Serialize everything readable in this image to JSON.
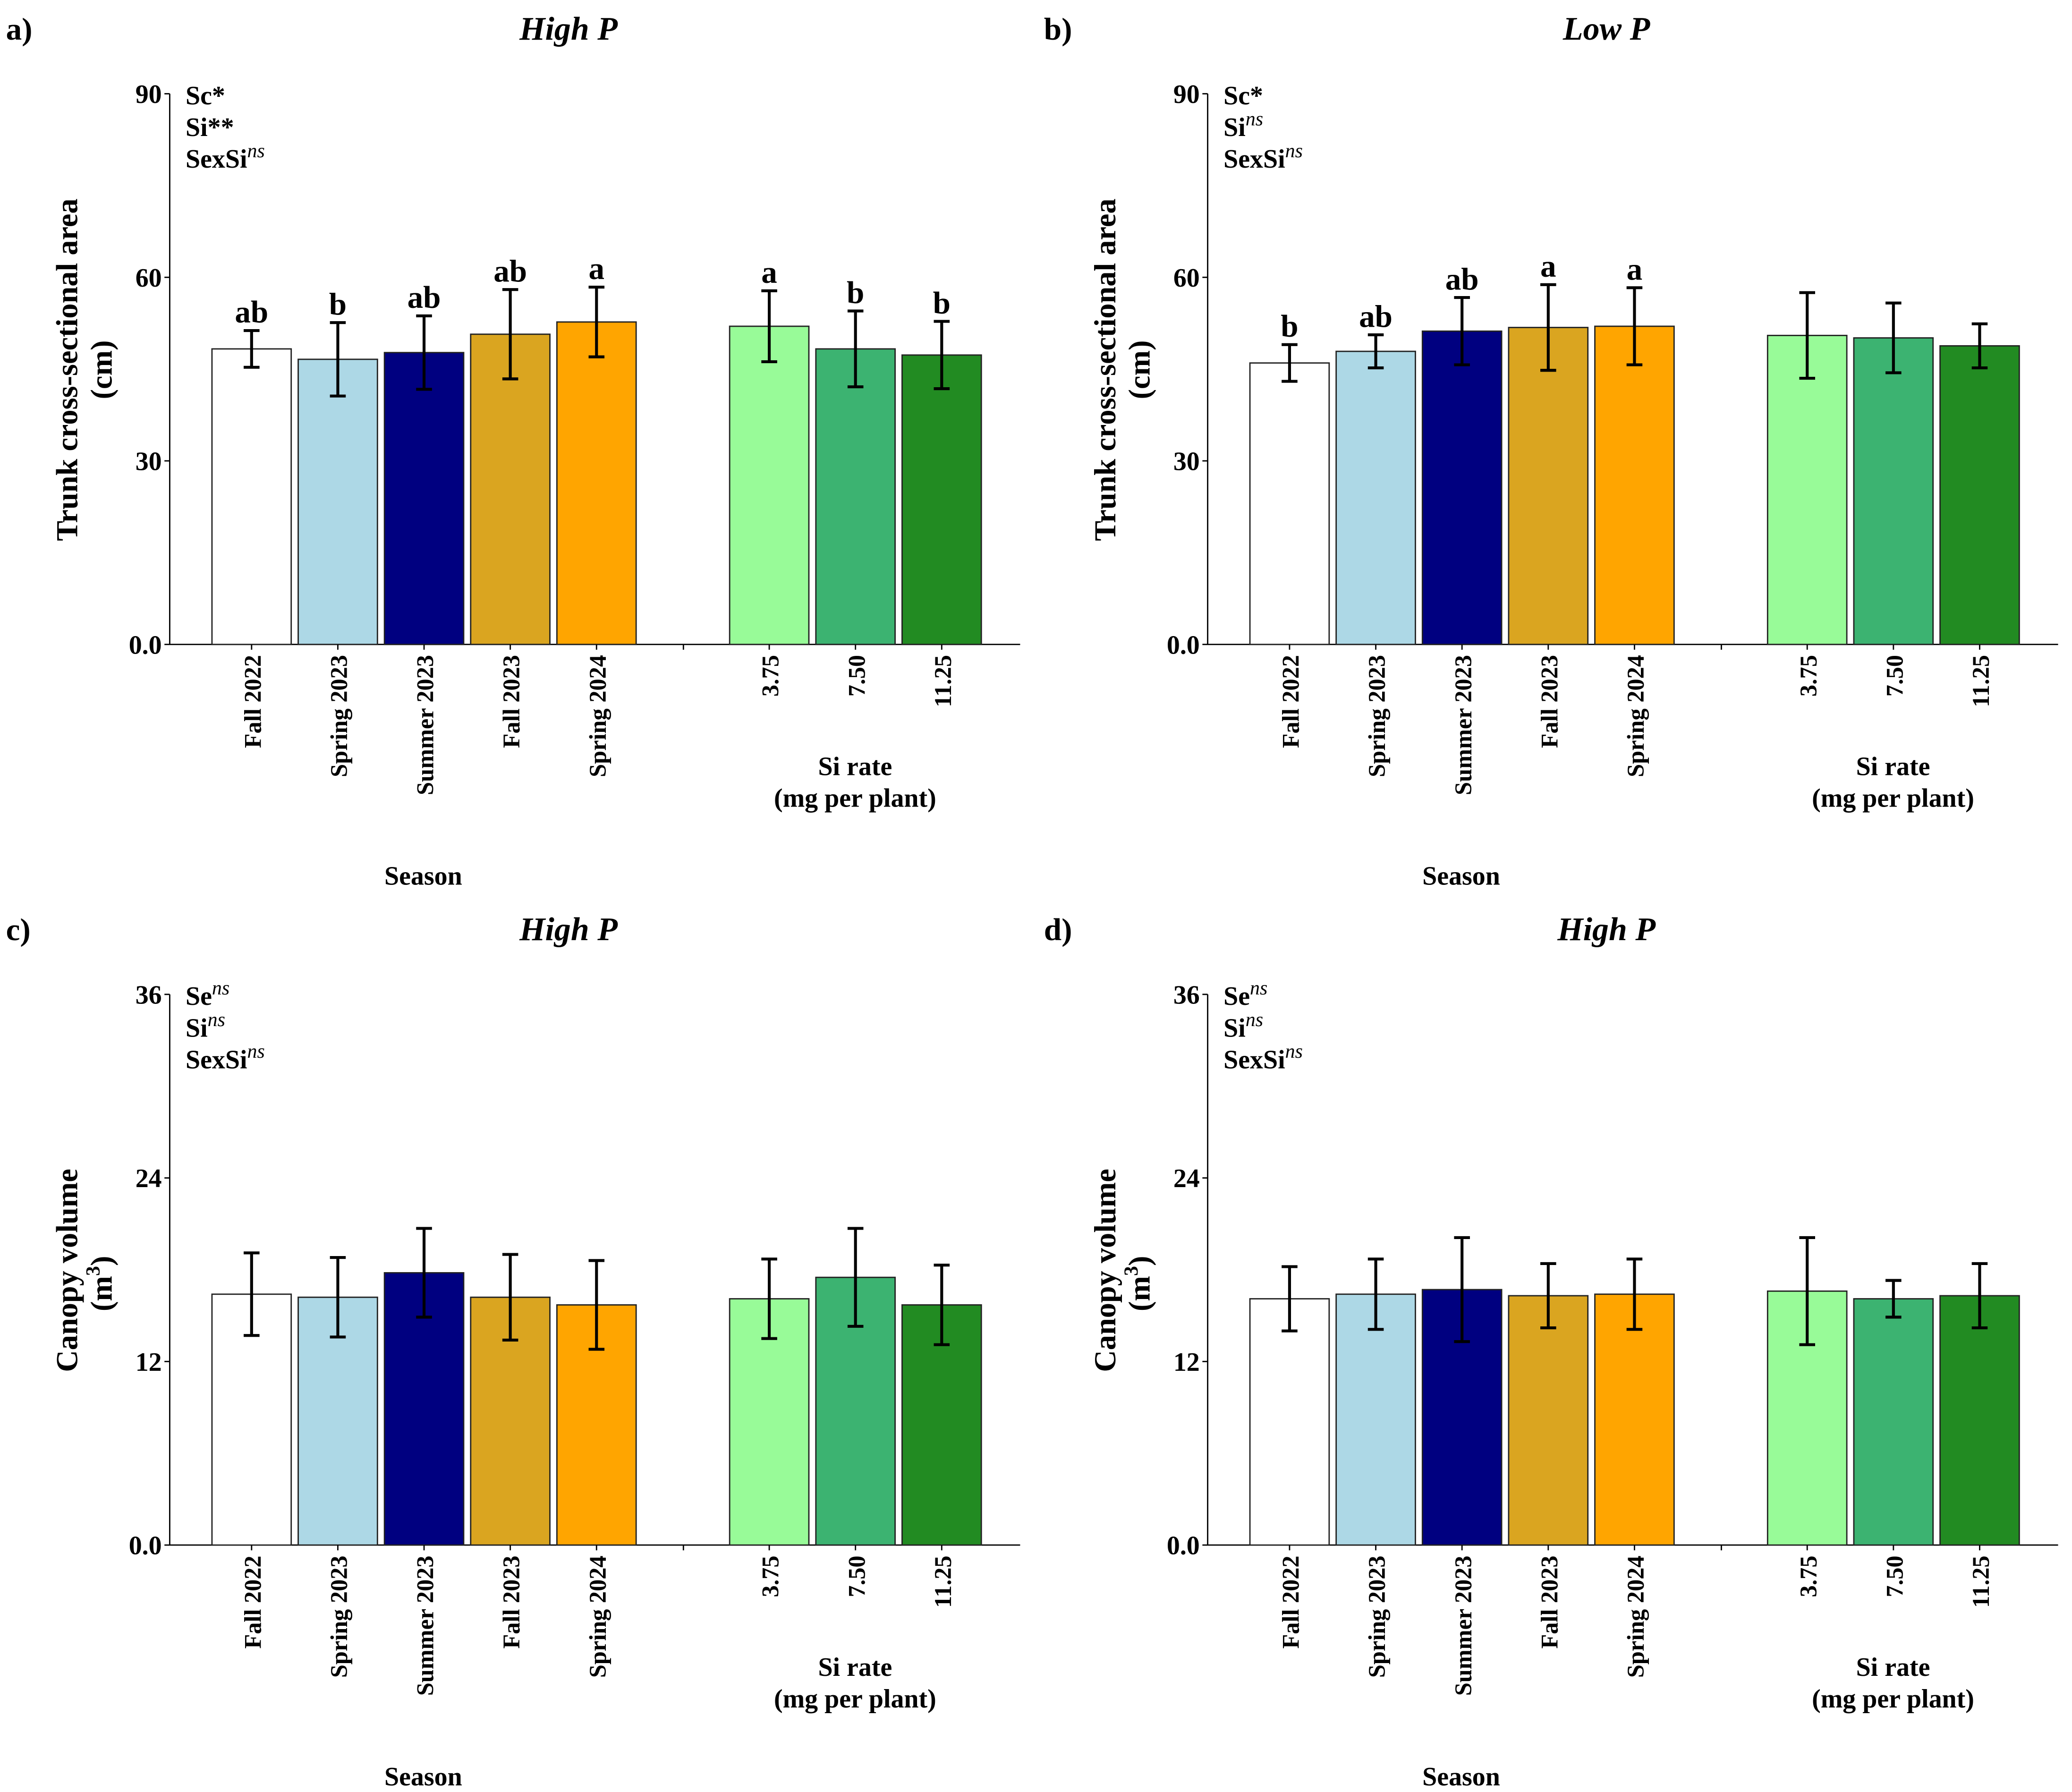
{
  "chart_data": [
    {
      "type": "bar",
      "panel_label": "a)",
      "title": "High P",
      "ylabel": [
        "Trunk cross-sectional area",
        "(cm)"
      ],
      "ylim": [
        0,
        90
      ],
      "yticks": [
        "0.0",
        "30",
        "60",
        "90"
      ],
      "ytick_values": [
        0,
        30,
        60,
        90
      ],
      "stats": [
        {
          "base": "Sc*",
          "sup": ""
        },
        {
          "base": "Si**",
          "sup": ""
        },
        {
          "base": "SexSi",
          "sup": "ns"
        }
      ],
      "group1": {
        "xlabel": "Season",
        "categories": [
          "Fall 2022",
          "Spring 2023",
          "Summer 2023",
          "Fall 2023",
          "Spring 2024"
        ],
        "values": [
          48.3,
          46.6,
          47.7,
          50.7,
          52.7
        ],
        "errors": [
          3.0,
          6.0,
          6.0,
          7.3,
          5.7
        ],
        "letters": [
          "ab",
          "b",
          "ab",
          "ab",
          "a"
        ]
      },
      "group2": {
        "xlabel": [
          "Si rate",
          "(mg per plant)"
        ],
        "categories": [
          "3.75",
          "7.50",
          "11.25"
        ],
        "values": [
          52.0,
          48.3,
          47.3
        ],
        "errors": [
          5.8,
          6.2,
          5.5
        ],
        "letters": [
          "a",
          "b",
          "b"
        ]
      }
    },
    {
      "type": "bar",
      "panel_label": "b)",
      "title": "Low P",
      "ylabel": [
        "Trunk cross-sectional area",
        "(cm)"
      ],
      "ylim": [
        0,
        90
      ],
      "yticks": [
        "0.0",
        "30",
        "60",
        "90"
      ],
      "ytick_values": [
        0,
        30,
        60,
        90
      ],
      "stats": [
        {
          "base": "Sc*",
          "sup": ""
        },
        {
          "base": "Si",
          "sup": "ns"
        },
        {
          "base": "SexSi",
          "sup": "ns"
        }
      ],
      "group1": {
        "xlabel": "Season",
        "categories": [
          "Fall 2022",
          "Spring 2023",
          "Summer 2023",
          "Fall 2023",
          "Spring 2024"
        ],
        "values": [
          46.0,
          47.9,
          51.2,
          51.8,
          52.0
        ],
        "errors": [
          3.0,
          2.7,
          5.5,
          7.0,
          6.3
        ],
        "letters": [
          "b",
          "ab",
          "ab",
          "a",
          "a"
        ]
      },
      "group2": {
        "xlabel": [
          "Si rate",
          "(mg per plant)"
        ],
        "categories": [
          "3.75",
          "7.50",
          "11.25"
        ],
        "values": [
          50.5,
          50.1,
          48.8
        ],
        "errors": [
          7.0,
          5.7,
          3.6
        ],
        "letters": [
          "",
          "",
          ""
        ]
      }
    },
    {
      "type": "bar",
      "panel_label": "c)",
      "title": "High P",
      "ylabel": [
        "Canopy volume",
        "(m",
        "3",
        ")"
      ],
      "ylim": [
        0,
        36
      ],
      "yticks": [
        "0.0",
        "12",
        "24",
        "36"
      ],
      "ytick_values": [
        0,
        12,
        24,
        36
      ],
      "stats": [
        {
          "base": "Se",
          "sup": "ns"
        },
        {
          "base": "Si",
          "sup": "ns"
        },
        {
          "base": "SexSi",
          "sup": "ns"
        }
      ],
      "group1": {
        "xlabel": "Season",
        "categories": [
          "Fall 2022",
          "Spring 2023",
          "Summer 2023",
          "Fall 2023",
          "Spring 2024"
        ],
        "values": [
          16.4,
          16.2,
          17.8,
          16.2,
          15.7
        ],
        "errors": [
          2.7,
          2.6,
          2.9,
          2.8,
          2.9
        ],
        "letters": [
          "",
          "",
          "",
          "",
          ""
        ]
      },
      "group2": {
        "xlabel": [
          "Si rate",
          "(mg per plant)"
        ],
        "categories": [
          "3.75",
          "7.50",
          "11.25"
        ],
        "values": [
          16.1,
          17.5,
          15.7
        ],
        "errors": [
          2.6,
          3.2,
          2.6
        ],
        "letters": [
          "",
          "",
          ""
        ]
      }
    },
    {
      "type": "bar",
      "panel_label": "d)",
      "title": "High P",
      "ylabel": [
        "Canopy volume",
        "(m",
        "3",
        ")"
      ],
      "ylim": [
        0,
        36
      ],
      "yticks": [
        "0.0",
        "12",
        "24",
        "36"
      ],
      "ytick_values": [
        0,
        12,
        24,
        36
      ],
      "stats": [
        {
          "base": "Se",
          "sup": "ns"
        },
        {
          "base": "Si",
          "sup": "ns"
        },
        {
          "base": "SexSi",
          "sup": "ns"
        }
      ],
      "group1": {
        "xlabel": "Season",
        "categories": [
          "Fall 2022",
          "Spring 2023",
          "Summer 2023",
          "Fall 2023",
          "Spring 2024"
        ],
        "values": [
          16.1,
          16.4,
          16.7,
          16.3,
          16.4
        ],
        "errors": [
          2.1,
          2.3,
          3.4,
          2.1,
          2.3
        ],
        "letters": [
          "",
          "",
          "",
          "",
          ""
        ]
      },
      "group2": {
        "xlabel": [
          "Si rate",
          "(mg per plant)"
        ],
        "categories": [
          "3.75",
          "7.50",
          "11.25"
        ],
        "values": [
          16.6,
          16.1,
          16.3
        ],
        "errors": [
          3.5,
          1.2,
          2.1
        ],
        "letters": [
          "",
          "",
          ""
        ]
      }
    }
  ],
  "colors": {
    "group1": [
      "#ffffff",
      "#add8e6",
      "#000080",
      "#daa520",
      "#ffa500"
    ],
    "group2": [
      "#98fb98",
      "#3cb371",
      "#228b22"
    ]
  }
}
